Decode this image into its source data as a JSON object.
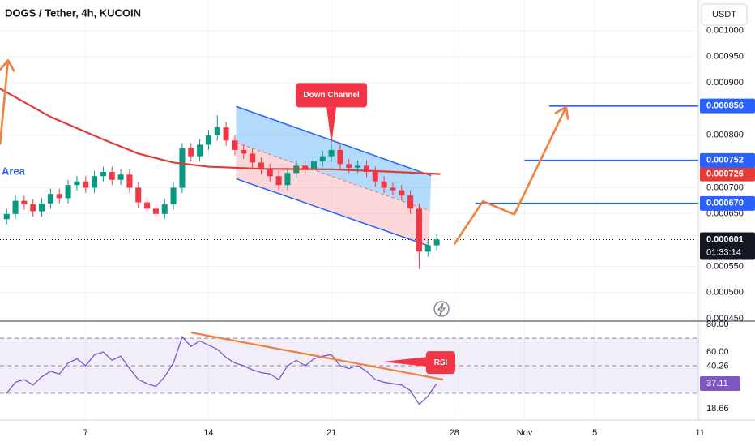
{
  "chart_data": {
    "type": "candlestick",
    "title": "DOGS / Tether, 4h, KUCOIN",
    "currency": "USDT",
    "area_label": "Area",
    "x": [
      2.5,
      3,
      3.5,
      4,
      4.5,
      5,
      5.5,
      6,
      6.5,
      7,
      7.5,
      8,
      8.5,
      9,
      9.5,
      10,
      10.5,
      11,
      11.5,
      12,
      12.5,
      13,
      13.5,
      14,
      14.5,
      15,
      15.5,
      16,
      16.5,
      17,
      17.5,
      18,
      18.5,
      19,
      19.5,
      20,
      20.5,
      21,
      21.5,
      22,
      22.5,
      23,
      23.5,
      24,
      24.5,
      25,
      25.5,
      26,
      26.5,
      27
    ],
    "open": [
      0.00064,
      0.00065,
      0.000675,
      0.000668,
      0.000655,
      0.00067,
      0.000688,
      0.00068,
      0.000705,
      0.000712,
      0.0007,
      0.000722,
      0.00073,
      0.000715,
      0.000725,
      0.0007,
      0.000672,
      0.00066,
      0.00065,
      0.000668,
      0.0007,
      0.000775,
      0.00076,
      0.000782,
      0.0008,
      0.000815,
      0.00079,
      0.000772,
      0.000765,
      0.000748,
      0.000735,
      0.000722,
      0.000705,
      0.000728,
      0.000742,
      0.000735,
      0.00075,
      0.00076,
      0.000772,
      0.000745,
      0.000738,
      0.000742,
      0.00073,
      0.000712,
      0.0007,
      0.000695,
      0.000685,
      0.00066,
      0.000578,
      0.00059
    ],
    "high": [
      0.00066,
      0.000685,
      0.000685,
      0.000678,
      0.00068,
      0.000698,
      0.000698,
      0.000715,
      0.000722,
      0.000722,
      0.000732,
      0.00074,
      0.00074,
      0.000735,
      0.000735,
      0.00071,
      0.000682,
      0.00067,
      0.000678,
      0.00071,
      0.000785,
      0.000785,
      0.000792,
      0.00081,
      0.000838,
      0.000825,
      0.0008,
      0.000782,
      0.000775,
      0.000758,
      0.000745,
      0.000732,
      0.000738,
      0.000752,
      0.000752,
      0.00076,
      0.00077,
      0.000782,
      0.000782,
      0.000755,
      0.000752,
      0.000752,
      0.00074,
      0.000722,
      0.00071,
      0.000705,
      0.000695,
      0.00067,
      0.0006,
      0.000611
    ],
    "low": [
      0.00063,
      0.00064,
      0.000658,
      0.000645,
      0.000645,
      0.00066,
      0.00067,
      0.00067,
      0.000695,
      0.00069,
      0.00069,
      0.000712,
      0.000705,
      0.000705,
      0.00069,
      0.000662,
      0.00065,
      0.00064,
      0.00064,
      0.000658,
      0.00069,
      0.00075,
      0.00075,
      0.000772,
      0.00079,
      0.00078,
      0.000762,
      0.000755,
      0.000738,
      0.000725,
      0.000712,
      0.000695,
      0.000695,
      0.000718,
      0.000725,
      0.000725,
      0.00074,
      0.00075,
      0.000735,
      0.000728,
      0.000728,
      0.00072,
      0.000702,
      0.00069,
      0.000685,
      0.000675,
      0.00065,
      0.000545,
      0.000568,
      0.00058
    ],
    "close": [
      0.00065,
      0.000675,
      0.000668,
      0.000655,
      0.00067,
      0.000688,
      0.00068,
      0.000705,
      0.000712,
      0.0007,
      0.000722,
      0.00073,
      0.000715,
      0.000725,
      0.0007,
      0.000672,
      0.00066,
      0.00065,
      0.000668,
      0.0007,
      0.000775,
      0.00076,
      0.000782,
      0.0008,
      0.000815,
      0.00079,
      0.000772,
      0.000765,
      0.000748,
      0.000735,
      0.000722,
      0.000705,
      0.000728,
      0.000742,
      0.000735,
      0.00075,
      0.00076,
      0.000772,
      0.000745,
      0.000738,
      0.000742,
      0.00073,
      0.000712,
      0.0007,
      0.000695,
      0.000685,
      0.00066,
      0.000578,
      0.00059,
      0.000601
    ],
    "up_color": "#089981",
    "down_color": "#f23645",
    "xlim": [
      2.12,
      41.9
    ],
    "xticks": [
      7,
      14,
      21,
      28,
      {
        "value": 32,
        "label": "Nov"
      },
      {
        "value": 36,
        "label": "5"
      },
      {
        "value": 42,
        "label": "11"
      }
    ],
    "ylim": [
      0.000447,
      0.001058
    ],
    "yticks": [
      {
        "value": 0.001,
        "label": "0.001000"
      },
      {
        "value": 0.00095,
        "label": "0.000950"
      },
      {
        "value": 0.0009,
        "label": "0.000900"
      },
      {
        "value": 0.0008,
        "label": "0.000800"
      },
      {
        "value": 0.0007,
        "label": "0.000700"
      },
      {
        "value": 0.00065,
        "label": "0.000650"
      },
      {
        "value": 0.00055,
        "label": "0.000550"
      },
      {
        "value": 0.0005,
        "label": "0.000500"
      },
      {
        "value": 0.00045,
        "label": "0.000450"
      }
    ],
    "grid": true,
    "moving_average": {
      "color": "#e53935",
      "x": [
        2.12,
        5,
        8,
        10,
        12,
        14,
        17,
        21,
        24,
        27.2
      ],
      "values": [
        0.000889,
        0.000835,
        0.000792,
        0.000765,
        0.000748,
        0.00074,
        0.000736,
        0.000735,
        0.000731,
        0.000726
      ],
      "last_label": "0.000726"
    },
    "last_price": {
      "value": 0.000601,
      "label": "0.000601",
      "countdown": "01:33:14"
    },
    "levels": [
      {
        "value": 0.000856,
        "label": "0.000856",
        "x_start": 33.4
      },
      {
        "value": 0.000752,
        "label": "0.000752",
        "x_start": 32.0
      },
      {
        "value": 0.00067,
        "label": "0.000670",
        "x_start": 29.2
      }
    ],
    "level_color": "#2962ff",
    "channel": {
      "color": "#2962ff",
      "upper": {
        "x": [
          15.57,
          26.68
        ],
        "values": [
          0.000855,
          0.000723
        ]
      },
      "lower": {
        "x": [
          15.57,
          26.54
        ],
        "values": [
          0.000717,
          0.000589
        ]
      }
    },
    "projections": [
      {
        "x": [
          28.0,
          29.63,
          31.42,
          34.37
        ],
        "values": [
          0.000592,
          0.000674,
          0.000649,
          0.000854
        ]
      },
      {
        "x": [
          2.12,
          2.58
        ],
        "values": [
          0.000782,
          0.000943
        ]
      }
    ],
    "projection_color": "#f0803c",
    "annotations": [
      {
        "text": "Down Channel",
        "x": 21,
        "y": 0.000782
      }
    ],
    "rsi": {
      "color": "#7e57c2",
      "ylim": [
        10.6,
        81.8
      ],
      "yticks": [
        {
          "value": 80,
          "label": "80.00"
        },
        {
          "value": 60,
          "label": "60.00"
        },
        {
          "value": 18.66,
          "label": "18.66"
        }
      ],
      "levels": [
        70,
        50,
        30
      ],
      "values": [
        30,
        38,
        40,
        36,
        42,
        46,
        44,
        52,
        55,
        50,
        58,
        60,
        54,
        57,
        48,
        40,
        37,
        35,
        42,
        52,
        71,
        64,
        68,
        65,
        62,
        56,
        52,
        50,
        47,
        45,
        44,
        40,
        50,
        54,
        50,
        55,
        57,
        58,
        50,
        48,
        50,
        46,
        40,
        38,
        37,
        36,
        32,
        22,
        28,
        37.11
      ],
      "value_label": "37.11",
      "ma_value": 40.26,
      "ma_label": "40.26",
      "trendline": {
        "x": [
          12.99,
          27.37
        ],
        "values": [
          74.1,
          40
        ]
      },
      "annotation": {
        "text": "RSI",
        "x": 23.9,
        "y": 52.9
      }
    }
  }
}
